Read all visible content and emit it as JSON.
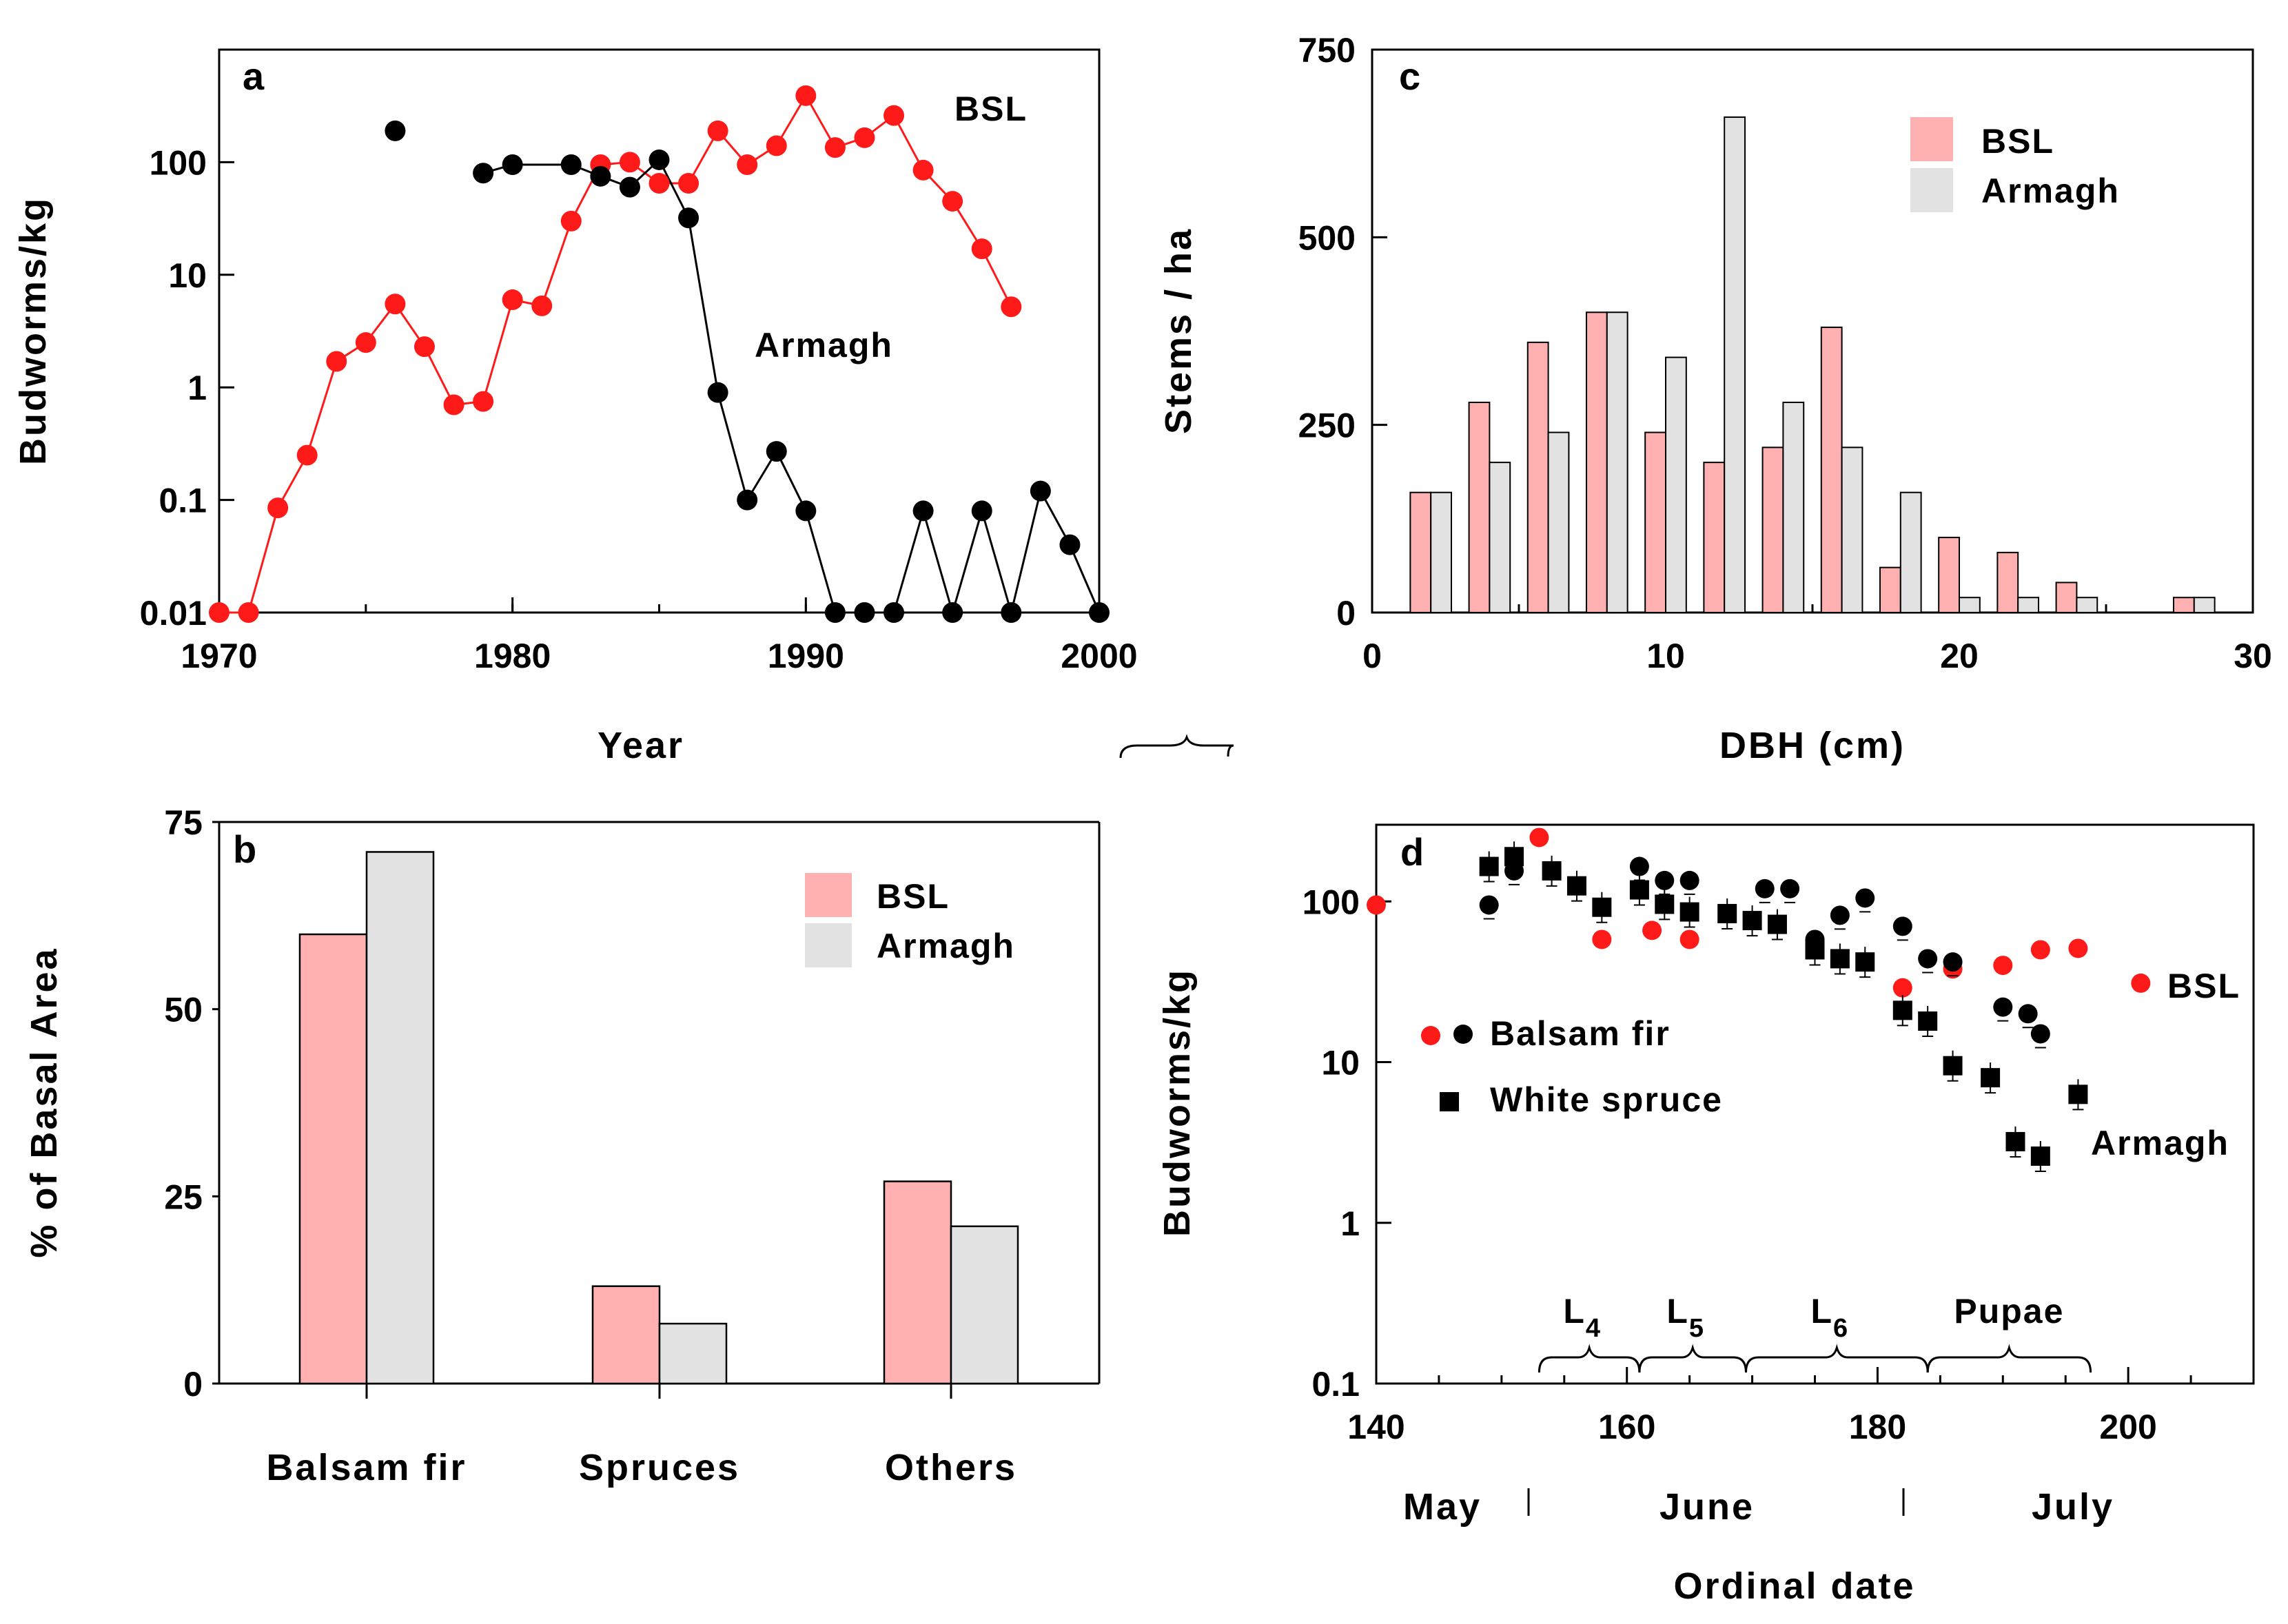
{
  "chart_data": [
    {
      "id": "a",
      "panel_label": "a",
      "type": "line",
      "x_name": "Year",
      "xlabel": "Year",
      "ylabel": "Budworms/kg",
      "yscale": "log",
      "xlim": [
        1970,
        2000
      ],
      "ylim": [
        0.01,
        1000
      ],
      "xticks": [
        "1970",
        "1980",
        "1990",
        "2000"
      ],
      "yticks": [
        "0.01",
        "0.1",
        "1",
        "10",
        "100"
      ],
      "colors": {
        "BSL": "#ff1a1a",
        "Armagh": "#000000"
      },
      "series": [
        {
          "name": "BSL",
          "color": "#ff1a1a",
          "x": [
            1970,
            1971,
            1972,
            1973,
            1974,
            1975,
            1976,
            1977,
            1978,
            1979,
            1980,
            1981,
            1982,
            1983,
            1984,
            1985,
            1986,
            1987,
            1988,
            1989,
            1990,
            1991,
            1992,
            1993,
            1994,
            1995,
            1996,
            1997
          ],
          "y": [
            0.01,
            0.01,
            0.085,
            0.25,
            1.7,
            2.5,
            5.5,
            2.3,
            0.7,
            0.75,
            6,
            5.3,
            30,
            95,
            100,
            65,
            65,
            190,
            95,
            140,
            390,
            135,
            165,
            260,
            85,
            45,
            17,
            5.2
          ]
        },
        {
          "name": "Armagh",
          "color": "#000000",
          "x": [
            1976,
            1979,
            1980,
            1982,
            1983,
            1984,
            1985,
            1986,
            1987,
            1988,
            1989,
            1990,
            1991,
            1992,
            1993,
            1994,
            1995,
            1996,
            1997,
            1998,
            1999,
            2000
          ],
          "y": [
            190,
            80,
            95,
            95,
            75,
            60,
            105,
            32,
            0.9,
            0.1,
            0.27,
            0.08,
            0.01,
            0.01,
            0.01,
            0.08,
            0.01,
            0.08,
            0.01,
            0.12,
            0.04,
            0.01
          ]
        }
      ],
      "annotations": [
        "BSL",
        "Armagh"
      ]
    },
    {
      "id": "b",
      "panel_label": "b",
      "type": "bar",
      "ylabel": "% of Basal Area",
      "ylim": [
        0,
        75
      ],
      "yticks": [
        "0",
        "25",
        "50",
        "75"
      ],
      "categories": [
        "Balsam fir",
        "Spruces",
        "Others"
      ],
      "series": [
        {
          "name": "BSL",
          "color": "#ffb0b0",
          "values": [
            60,
            13,
            27
          ]
        },
        {
          "name": "Armagh",
          "color": "#e2e2e2",
          "values": [
            71,
            8,
            21
          ]
        }
      ],
      "legend": [
        "BSL",
        "Armagh"
      ]
    },
    {
      "id": "c",
      "panel_label": "c",
      "type": "bar",
      "xlabel": "DBH (cm)",
      "ylabel": "Stems / ha",
      "xlim": [
        0,
        30
      ],
      "ylim": [
        0,
        750
      ],
      "xticks": [
        "0",
        "10",
        "20",
        "30"
      ],
      "yticks": [
        "0",
        "250",
        "500",
        "750"
      ],
      "x": [
        2,
        4,
        6,
        8,
        10,
        12,
        14,
        16,
        18,
        20,
        22,
        24,
        28
      ],
      "series": [
        {
          "name": "BSL",
          "color": "#ffb0b0",
          "values": [
            160,
            280,
            360,
            400,
            240,
            200,
            220,
            380,
            60,
            100,
            80,
            40,
            20
          ]
        },
        {
          "name": "Armagh",
          "color": "#e2e2e2",
          "values": [
            160,
            200,
            240,
            400,
            340,
            660,
            280,
            220,
            160,
            20,
            20,
            20,
            20
          ]
        }
      ],
      "legend": [
        "BSL",
        "Armagh"
      ]
    },
    {
      "id": "d",
      "panel_label": "d",
      "type": "scatter",
      "xlabel": "Ordinal date",
      "ylabel": "Budworms/kg",
      "yscale": "log",
      "xlim": [
        140,
        210
      ],
      "ylim": [
        0.1,
        300
      ],
      "xticks": [
        "140",
        "160",
        "180",
        "200"
      ],
      "yticks": [
        "0.1",
        "1",
        "10",
        "100"
      ],
      "months": [
        "May",
        "June",
        "July"
      ],
      "stages": [
        "L4",
        "L5",
        "L6",
        "Pupae"
      ],
      "series": [
        {
          "name": "BSL Balsam fir",
          "color": "#ff1a1a",
          "marker": "circle",
          "x": [
            140,
            153,
            158,
            162,
            165,
            182,
            186,
            190,
            193,
            196,
            201
          ],
          "y": [
            95,
            250,
            58,
            66,
            58,
            29,
            38,
            40,
            50,
            51,
            31
          ]
        },
        {
          "name": "Armagh Balsam fir",
          "color": "#000000",
          "marker": "circle",
          "x": [
            149,
            151,
            161,
            163,
            165,
            171,
            173,
            175,
            177,
            179,
            182,
            184,
            186,
            190,
            192,
            193
          ],
          "y": [
            95,
            155,
            165,
            135,
            135,
            120,
            120,
            58,
            82,
            105,
            70,
            44,
            42,
            22,
            20,
            15
          ]
        },
        {
          "name": "Armagh White spruce",
          "color": "#000000",
          "marker": "square",
          "x": [
            149,
            151,
            154,
            156,
            158,
            161,
            163,
            165,
            168,
            170,
            172,
            175,
            177,
            179,
            182,
            184,
            186,
            189,
            191,
            193,
            196
          ],
          "y": [
            165,
            190,
            155,
            125,
            92,
            118,
            96,
            86,
            84,
            76,
            72,
            50,
            44,
            42,
            21,
            18,
            9.5,
            8,
            3.2,
            2.6,
            6.3
          ]
        }
      ],
      "legend": [
        "Balsam fir",
        "White spruce"
      ],
      "annotations": [
        "BSL",
        "Armagh"
      ]
    }
  ]
}
